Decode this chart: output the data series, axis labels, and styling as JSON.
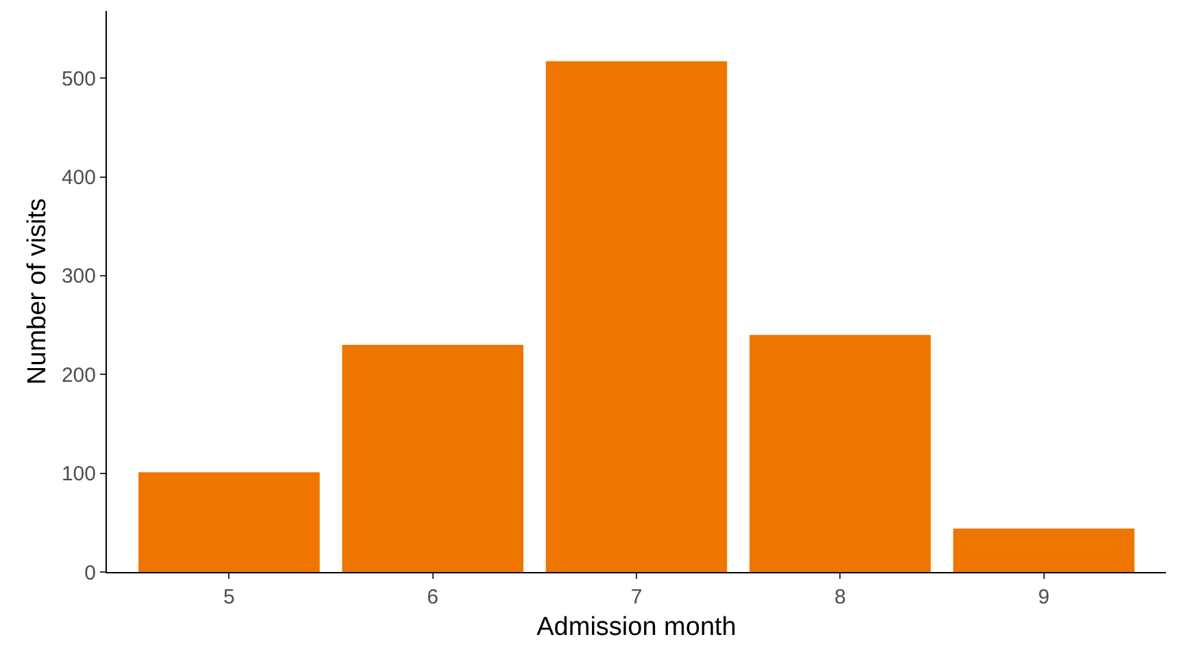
{
  "chart_data": {
    "type": "bar",
    "xlabel": "Admission month",
    "ylabel": "Number of visits",
    "categories": [
      "5",
      "6",
      "7",
      "8",
      "9"
    ],
    "values": [
      101,
      230,
      517,
      240,
      44
    ],
    "color": "#ee7600",
    "ylim": [
      0,
      568
    ],
    "yticks": [
      0,
      100,
      200,
      300,
      400,
      500
    ],
    "grid": false
  }
}
